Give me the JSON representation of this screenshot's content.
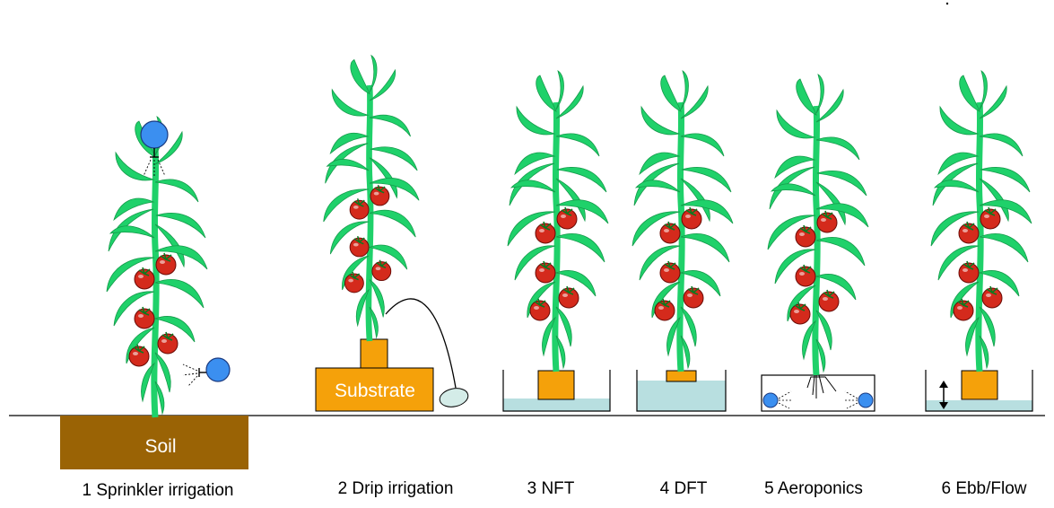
{
  "labels": {
    "soil": "Soil",
    "substrate": "Substrate"
  },
  "captions": {
    "c1": "1 Sprinkler irrigation",
    "c2": "2 Drip irrigation",
    "c3": "3 NFT",
    "c4": "4 DFT",
    "c5": "5 Aeroponics",
    "c6": "6 Ebb/Flow"
  },
  "colors": {
    "leaf": "#1fd16a",
    "tomato": "#d42a1c",
    "soil": "#9a6305",
    "substrate": "#f5a10a",
    "water": "#b8dfe0",
    "nozzle": "#3b8ff0",
    "emitter": "#d4ece8"
  }
}
